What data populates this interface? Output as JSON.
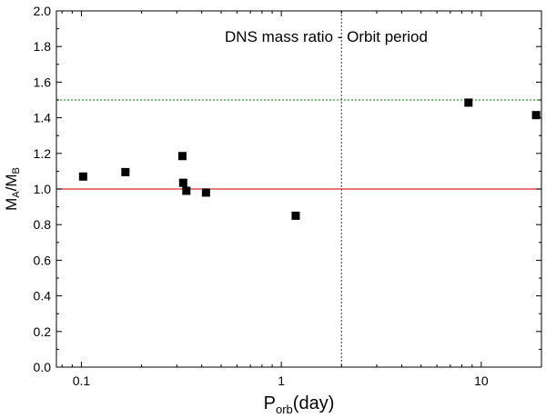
{
  "chart_data": {
    "type": "scatter",
    "title": "DNS mass ratio - Orbit period",
    "xlabel": {
      "main": "P",
      "sub": "orb",
      "rest": "(day)"
    },
    "ylabel": {
      "m1": "M",
      "s1": "A",
      "slash": "/",
      "m2": "M",
      "s2": "B"
    },
    "xscale": "log",
    "xlim": [
      0.075,
      20
    ],
    "ylim": [
      0,
      2.0
    ],
    "xticks": [
      0.1,
      1,
      10
    ],
    "xtick_labels": [
      "0.1",
      "1",
      "10"
    ],
    "yticks": [
      0,
      0.2,
      0.4,
      0.6,
      0.8,
      1.0,
      1.2,
      1.4,
      1.6,
      1.8,
      2.0
    ],
    "ytick_labels": [
      "0.0",
      "0.2",
      "0.4",
      "0.6",
      "0.8",
      "1.0",
      "1.2",
      "1.4",
      "1.6",
      "1.8",
      "2.0"
    ],
    "series": [
      {
        "name": "DNS",
        "marker": "square",
        "color": "#000000",
        "points": [
          {
            "x": 0.102,
            "y": 1.07
          },
          {
            "x": 0.166,
            "y": 1.095
          },
          {
            "x": 0.32,
            "y": 1.185
          },
          {
            "x": 0.323,
            "y": 1.035
          },
          {
            "x": 0.335,
            "y": 0.99
          },
          {
            "x": 0.42,
            "y": 0.98
          },
          {
            "x": 1.18,
            "y": 0.85
          },
          {
            "x": 8.63,
            "y": 1.485
          },
          {
            "x": 18.8,
            "y": 1.415
          }
        ]
      }
    ],
    "reference_lines": [
      {
        "name": "ratio-1",
        "orientation": "horizontal",
        "value": 1.0,
        "color": "#d62728",
        "style": "solid"
      },
      {
        "name": "ratio-1.5",
        "orientation": "horizontal",
        "value": 1.5,
        "color": "#2ca02c",
        "style": "dotted"
      },
      {
        "name": "period-2d",
        "orientation": "vertical",
        "value": 2.0,
        "color": "#555555",
        "style": "dotted"
      }
    ]
  }
}
